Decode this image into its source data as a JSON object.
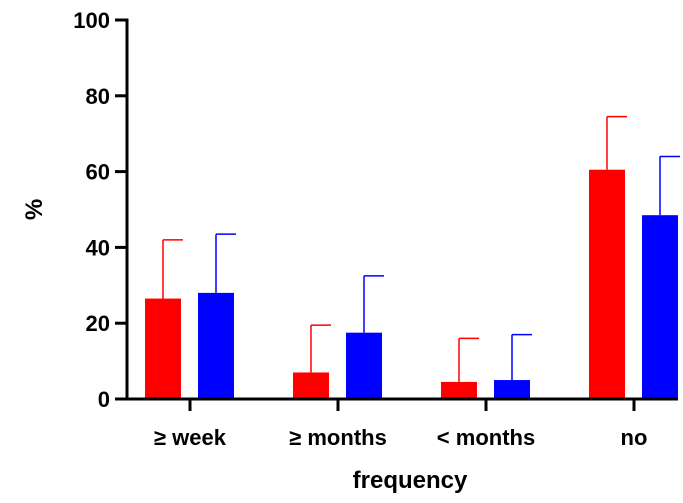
{
  "chart_data": {
    "type": "bar",
    "title": "",
    "xlabel": "frequency",
    "ylabel": "%",
    "ylim": [
      0,
      100
    ],
    "yticks": [
      "0",
      "20",
      "40",
      "60",
      "80",
      "100"
    ],
    "categories": [
      "≥ week",
      "≥ months",
      "< months",
      "no"
    ],
    "series": [
      {
        "color": "#ff0000",
        "values": [
          26.5,
          7,
          4.5,
          60.5
        ],
        "errors": [
          15.5,
          12.5,
          11.5,
          14
        ]
      },
      {
        "color": "#0000ff",
        "values": [
          28,
          17.5,
          5,
          48.5
        ],
        "errors": [
          15.5,
          15,
          12,
          15.5
        ]
      }
    ],
    "grid": false,
    "legend": "none",
    "error_bars": "upper"
  }
}
